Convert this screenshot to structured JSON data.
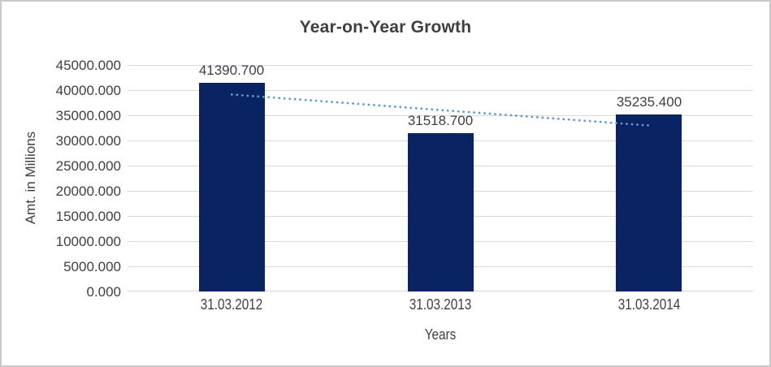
{
  "frame": {
    "background": "#FFFFFF",
    "border_color": "#C9C9C9"
  },
  "chart_data": {
    "type": "bar",
    "title": "Year-on-Year Growth",
    "xlabel": "Years",
    "ylabel": "Amt. in Millions",
    "categories": [
      "31.03.2012",
      "31.03.2013",
      "31.03.2014"
    ],
    "values": [
      41390.7,
      31518.7,
      35235.4
    ],
    "bar_value_labels": [
      "41390.700",
      "31518.700",
      "35235.400"
    ],
    "ylim": [
      0,
      45000
    ],
    "ytick_step": 5000,
    "ytick_labels": [
      "45000.000",
      "40000.000",
      "35000.000",
      "30000.000",
      "25000.000",
      "20000.000",
      "15000.000",
      "10000.000",
      "5000.000",
      "0.000"
    ],
    "grid": true,
    "legend_position": "none",
    "trendline": {
      "type": "linear",
      "style": "dotted"
    },
    "colors": {
      "bar": "#0A2463",
      "trendline": "#5B9BD5",
      "gridline": "#D9D9D9",
      "axis_text": "#404040",
      "title_text": "#3F3F3F",
      "frame_border": "#C9C9C9"
    }
  }
}
